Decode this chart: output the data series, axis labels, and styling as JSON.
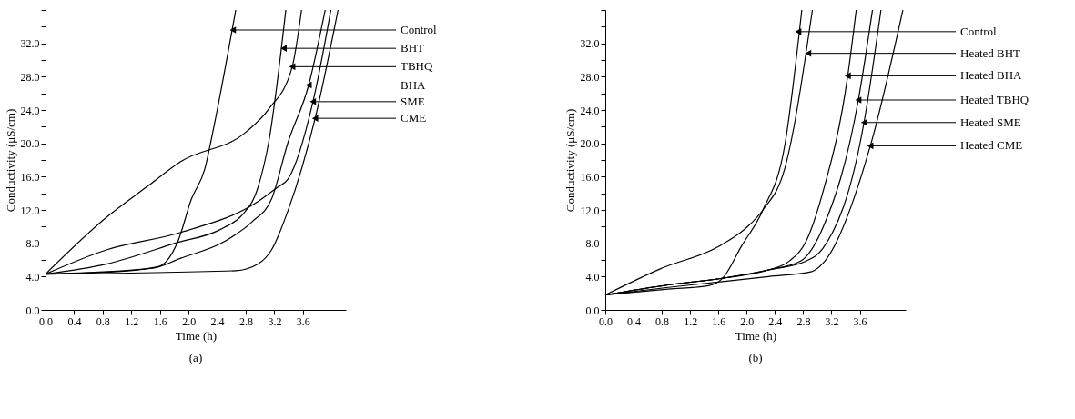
{
  "chart_data": [
    {
      "type": "line",
      "title": "(a)",
      "xlabel": "Time (h)",
      "ylabel": "Conductivity (μS/cm)",
      "xlim": [
        0,
        4.2
      ],
      "ylim": [
        0,
        36
      ],
      "xticks": [
        {
          "value": 0,
          "label": "0.0"
        },
        {
          "value": 0.4,
          "label": "0.4"
        },
        {
          "value": 0.8,
          "label": "0.8"
        },
        {
          "value": 1.2,
          "label": "1.2"
        },
        {
          "value": 1.6,
          "label": "1.6"
        },
        {
          "value": 2.0,
          "label": "2.0"
        },
        {
          "value": 2.4,
          "label": "2.4"
        },
        {
          "value": 2.8,
          "label": "2.8"
        },
        {
          "value": 3.2,
          "label": "3.2"
        },
        {
          "value": 3.6,
          "label": "3.6"
        }
      ],
      "yticks": [
        {
          "value": 0,
          "label": "0.0"
        },
        {
          "value": 2,
          "label": null
        },
        {
          "value": 4,
          "label": "4.0"
        },
        {
          "value": 6,
          "label": null
        },
        {
          "value": 8,
          "label": "8.0"
        },
        {
          "value": 10,
          "label": null
        },
        {
          "value": 12,
          "label": "12.0"
        },
        {
          "value": 14,
          "label": null
        },
        {
          "value": 16,
          "label": "16.0"
        },
        {
          "value": 18,
          "label": null
        },
        {
          "value": 20,
          "label": "20.0"
        },
        {
          "value": 22,
          "label": null
        },
        {
          "value": 24,
          "label": "24.0"
        },
        {
          "value": 26,
          "label": null
        },
        {
          "value": 28,
          "label": "28.0"
        },
        {
          "value": 30,
          "label": null
        },
        {
          "value": 32,
          "label": "32.0"
        },
        {
          "value": 34,
          "label": null
        },
        {
          "value": 36,
          "label": null
        }
      ],
      "series": [
        {
          "color": "#000000",
          "x": [
            0,
            1.0,
            1.58,
            1.85,
            2.04,
            2.23,
            2.35,
            2.66
          ],
          "values": [
            4.3,
            4.6,
            5.2,
            8.2,
            13.3,
            17.0,
            21.8,
            36
          ]
        },
        {
          "color": "#000000",
          "x": [
            0,
            0.85,
            1.81,
            2.5,
            2.74,
            2.97,
            3.12,
            3.36
          ],
          "values": [
            4.3,
            5.5,
            8.0,
            9.9,
            11.3,
            14.7,
            20.1,
            36
          ]
        },
        {
          "color": "#000000",
          "x": [
            0,
            0.85,
            1.42,
            1.89,
            2.81,
            3.12,
            3.45,
            3.58
          ],
          "values": [
            4.3,
            11.1,
            14.8,
            17.8,
            21.4,
            24.1,
            29.2,
            36
          ]
        },
        {
          "color": "#000000",
          "x": [
            0,
            1.5,
            1.89,
            2.5,
            2.89,
            3.16,
            3.39,
            3.68,
            3.91
          ],
          "values": [
            4.3,
            5.0,
            6.2,
            8.2,
            10.6,
            13.3,
            20.1,
            27.0,
            36
          ]
        },
        {
          "color": "#000000",
          "x": [
            0,
            0.85,
            1.89,
            2.97,
            3.24,
            3.39,
            3.74,
            3.99
          ],
          "values": [
            4.3,
            7.2,
            9.3,
            13.0,
            14.7,
            15.7,
            25.0,
            36
          ]
        },
        {
          "color": "#000000",
          "x": [
            0,
            2.66,
            2.97,
            3.16,
            3.39,
            3.77,
            4.09
          ],
          "values": [
            4.3,
            4.7,
            5.5,
            7.2,
            11.9,
            23.0,
            36
          ]
        }
      ],
      "annotations": [
        {
          "text": "Control",
          "x": 2.62,
          "y": 33.6
        },
        {
          "text": "BHT",
          "x": 3.33,
          "y": 31.4
        },
        {
          "text": "TBHQ",
          "x": 3.45,
          "y": 29.2
        },
        {
          "text": "BHA",
          "x": 3.68,
          "y": 27.0
        },
        {
          "text": "SME",
          "x": 3.74,
          "y": 25.0
        },
        {
          "text": "CME",
          "x": 3.77,
          "y": 23.0
        }
      ]
    },
    {
      "type": "line",
      "title": "(b)",
      "xlabel": "Time (h)",
      "ylabel": "Conductivity (μS/cm)",
      "xlim": [
        0,
        4.25
      ],
      "ylim": [
        0,
        36
      ],
      "xticks": [
        {
          "value": 0,
          "label": "0.0"
        },
        {
          "value": 0.4,
          "label": "0.4"
        },
        {
          "value": 0.8,
          "label": "0.8"
        },
        {
          "value": 1.2,
          "label": "1.2"
        },
        {
          "value": 1.6,
          "label": "1.6"
        },
        {
          "value": 2.0,
          "label": "2.0"
        },
        {
          "value": 2.4,
          "label": "2.4"
        },
        {
          "value": 2.8,
          "label": "2.8"
        },
        {
          "value": 3.2,
          "label": "3.2"
        },
        {
          "value": 3.6,
          "label": "3.6"
        }
      ],
      "yticks": [
        {
          "value": 0,
          "label": "0.0"
        },
        {
          "value": 2,
          "label": null
        },
        {
          "value": 4,
          "label": "4.0"
        },
        {
          "value": 6,
          "label": null
        },
        {
          "value": 8,
          "label": "8.0"
        },
        {
          "value": 10,
          "label": null
        },
        {
          "value": 12,
          "label": "12.0"
        },
        {
          "value": 14,
          "label": null
        },
        {
          "value": 16,
          "label": "16.0"
        },
        {
          "value": 18,
          "label": null
        },
        {
          "value": 20,
          "label": "20.0"
        },
        {
          "value": 22,
          "label": null
        },
        {
          "value": 24,
          "label": "24.0"
        },
        {
          "value": 26,
          "label": null
        },
        {
          "value": 28,
          "label": "28.0"
        },
        {
          "value": 30,
          "label": null
        },
        {
          "value": 32,
          "label": "32.0"
        },
        {
          "value": 34,
          "label": null
        },
        {
          "value": 36,
          "label": null
        }
      ],
      "series": [
        {
          "color": "#000000",
          "x": [
            0,
            0.89,
            1.46,
            1.66,
            1.93,
            2.23,
            2.54,
            2.78
          ],
          "values": [
            1.8,
            2.5,
            2.9,
            3.8,
            7.7,
            12.0,
            19.8,
            36
          ]
        },
        {
          "color": "#000000",
          "x": [
            0,
            0.77,
            1.62,
            2.0,
            2.23,
            2.54,
            2.93
          ],
          "values": [
            1.8,
            4.9,
            7.7,
            9.9,
            12.0,
            17.0,
            36
          ]
        },
        {
          "color": "#000000",
          "x": [
            0,
            0.89,
            1.74,
            2.31,
            2.61,
            2.85,
            3.08,
            3.43,
            3.55
          ],
          "values": [
            1.8,
            3.0,
            3.9,
            4.8,
            5.9,
            8.4,
            14.2,
            28.1,
            36
          ]
        },
        {
          "color": "#000000",
          "x": [
            0,
            0.89,
            1.74,
            2.31,
            2.77,
            3.08,
            3.58,
            3.78
          ],
          "values": [
            1.8,
            3.0,
            3.9,
            4.8,
            5.9,
            9.9,
            25.2,
            36
          ]
        },
        {
          "color": "#000000",
          "x": [
            0,
            0.89,
            1.74,
            2.31,
            2.85,
            3.08,
            3.66,
            3.9
          ],
          "values": [
            1.8,
            3.0,
            3.9,
            4.8,
            5.9,
            7.4,
            22.5,
            36
          ]
        },
        {
          "color": "#000000",
          "x": [
            0,
            0.89,
            2.31,
            2.92,
            3.08,
            3.75,
            4.21
          ],
          "values": [
            1.8,
            2.7,
            4.0,
            4.6,
            5.6,
            19.7,
            36
          ]
        }
      ],
      "annotations": [
        {
          "text": "Control",
          "x": 2.73,
          "y": 33.4
        },
        {
          "text": "Heated BHT",
          "x": 2.87,
          "y": 30.8
        },
        {
          "text": "Heated BHA",
          "x": 3.43,
          "y": 28.1
        },
        {
          "text": "Heated TBHQ",
          "x": 3.58,
          "y": 25.2
        },
        {
          "text": "Heated SME",
          "x": 3.66,
          "y": 22.5
        },
        {
          "text": "Heated CME",
          "x": 3.75,
          "y": 19.7
        }
      ]
    }
  ]
}
